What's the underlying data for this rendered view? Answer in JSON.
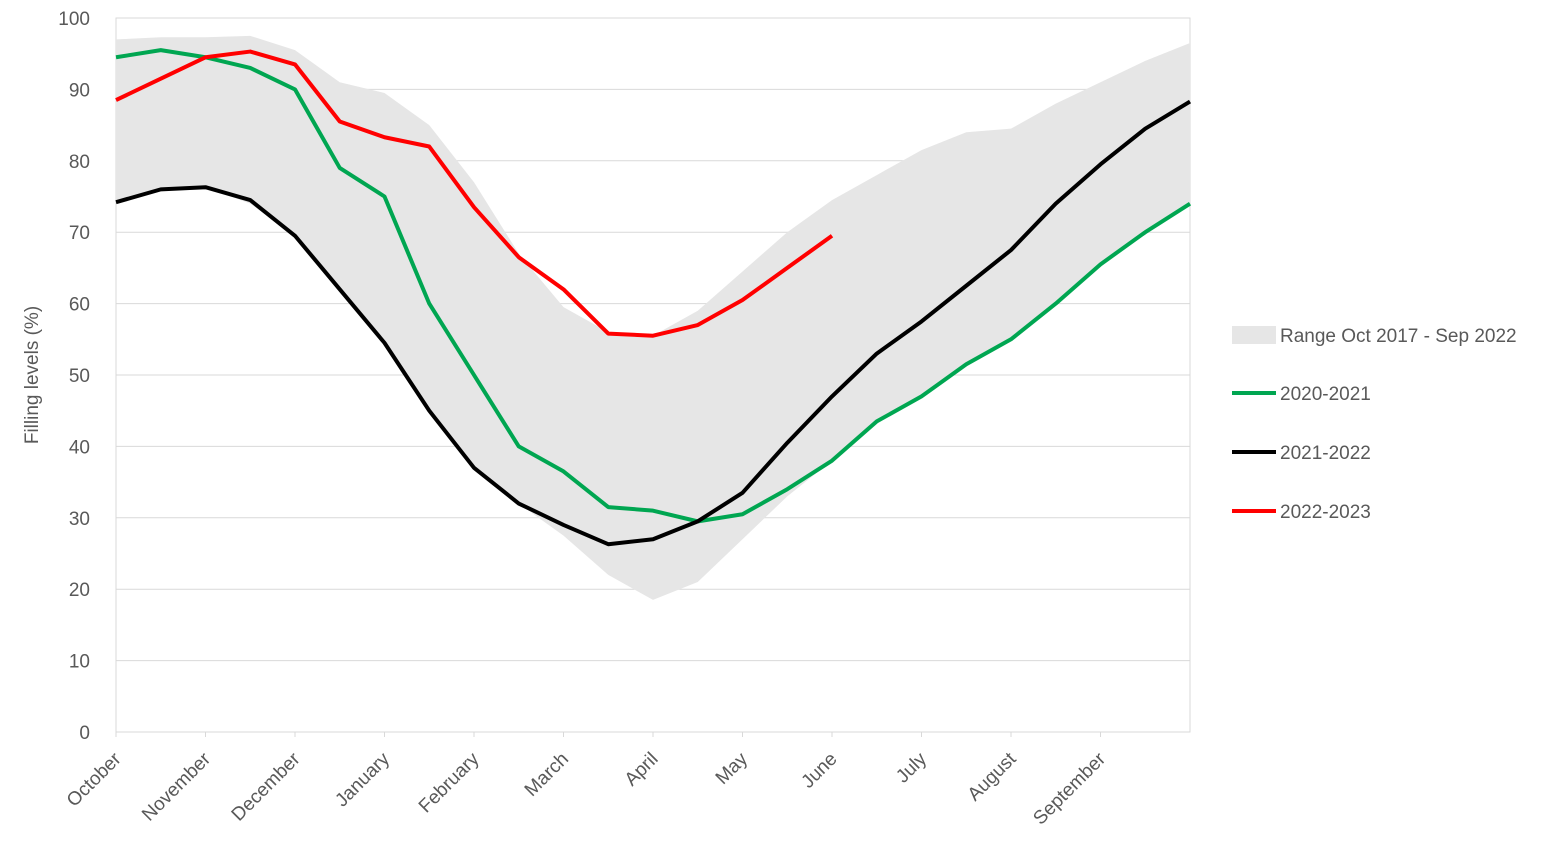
{
  "chart_data": {
    "type": "line",
    "y_label": "Filling levels (%)",
    "x": [
      0,
      0.5,
      1,
      1.5,
      2,
      2.5,
      3,
      3.5,
      4,
      4.5,
      5,
      5.5,
      6,
      6.5,
      7,
      7.5,
      8,
      8.5,
      9,
      9.5,
      10,
      10.5,
      11,
      11.5,
      12
    ],
    "xlim": [
      0,
      12
    ],
    "xticks": [
      {
        "value": 0,
        "label": "October"
      },
      {
        "value": 1,
        "label": "November"
      },
      {
        "value": 2,
        "label": "December"
      },
      {
        "value": 3,
        "label": "January"
      },
      {
        "value": 4,
        "label": "February"
      },
      {
        "value": 5,
        "label": "March"
      },
      {
        "value": 6,
        "label": "April"
      },
      {
        "value": 7,
        "label": "May"
      },
      {
        "value": 8,
        "label": "June"
      },
      {
        "value": 9,
        "label": "July"
      },
      {
        "value": 10,
        "label": "August"
      },
      {
        "value": 11,
        "label": "September"
      }
    ],
    "ylim": [
      0,
      100
    ],
    "yticks": [
      0,
      10,
      20,
      30,
      40,
      50,
      60,
      70,
      80,
      90,
      100
    ],
    "grid": true,
    "range": {
      "name": "Range Oct 2017 - Sep 2022",
      "color": "#e6e6e6",
      "upper": [
        97,
        97.3,
        97.3,
        97.5,
        95.5,
        91,
        89.5,
        85,
        77,
        67,
        59.5,
        56,
        55.5,
        59,
        64.5,
        70,
        74.5,
        78,
        81.5,
        84,
        84.5,
        88,
        91,
        94,
        96.5
      ],
      "lower": [
        74,
        76,
        76.3,
        74,
        69.5,
        62,
        54.5,
        45,
        37,
        32,
        27.5,
        22,
        18.5,
        21,
        27,
        33,
        38,
        43.5,
        47,
        51.5,
        55,
        60,
        65.5,
        70,
        74
      ]
    },
    "series": [
      {
        "name": "2020-2021",
        "color": "#00a651",
        "values": [
          94.5,
          95.5,
          94.5,
          93,
          90,
          79,
          75,
          60,
          50,
          40,
          36.5,
          31.5,
          31,
          29.5,
          30.5,
          34,
          38,
          43.5,
          47,
          51.5,
          55,
          60,
          65.5,
          70,
          74
        ]
      },
      {
        "name": "2021-2022",
        "color": "#000000",
        "values": [
          74.2,
          76,
          76.3,
          74.5,
          69.5,
          62,
          54.5,
          45,
          37,
          32,
          29,
          26.3,
          27,
          29.5,
          33.5,
          40.5,
          47,
          53,
          57.5,
          62.5,
          67.5,
          74,
          79.5,
          84.5,
          88.3
        ]
      },
      {
        "name": "2022-2023",
        "color": "#ff0000",
        "values": [
          88.5,
          91.5,
          94.5,
          95.3,
          93.5,
          85.5,
          83.3,
          82,
          73.5,
          66.5,
          62,
          55.8,
          55.5,
          57,
          60.5,
          65,
          69.5,
          null,
          null,
          null,
          null,
          null,
          null,
          null,
          null
        ]
      }
    ]
  }
}
